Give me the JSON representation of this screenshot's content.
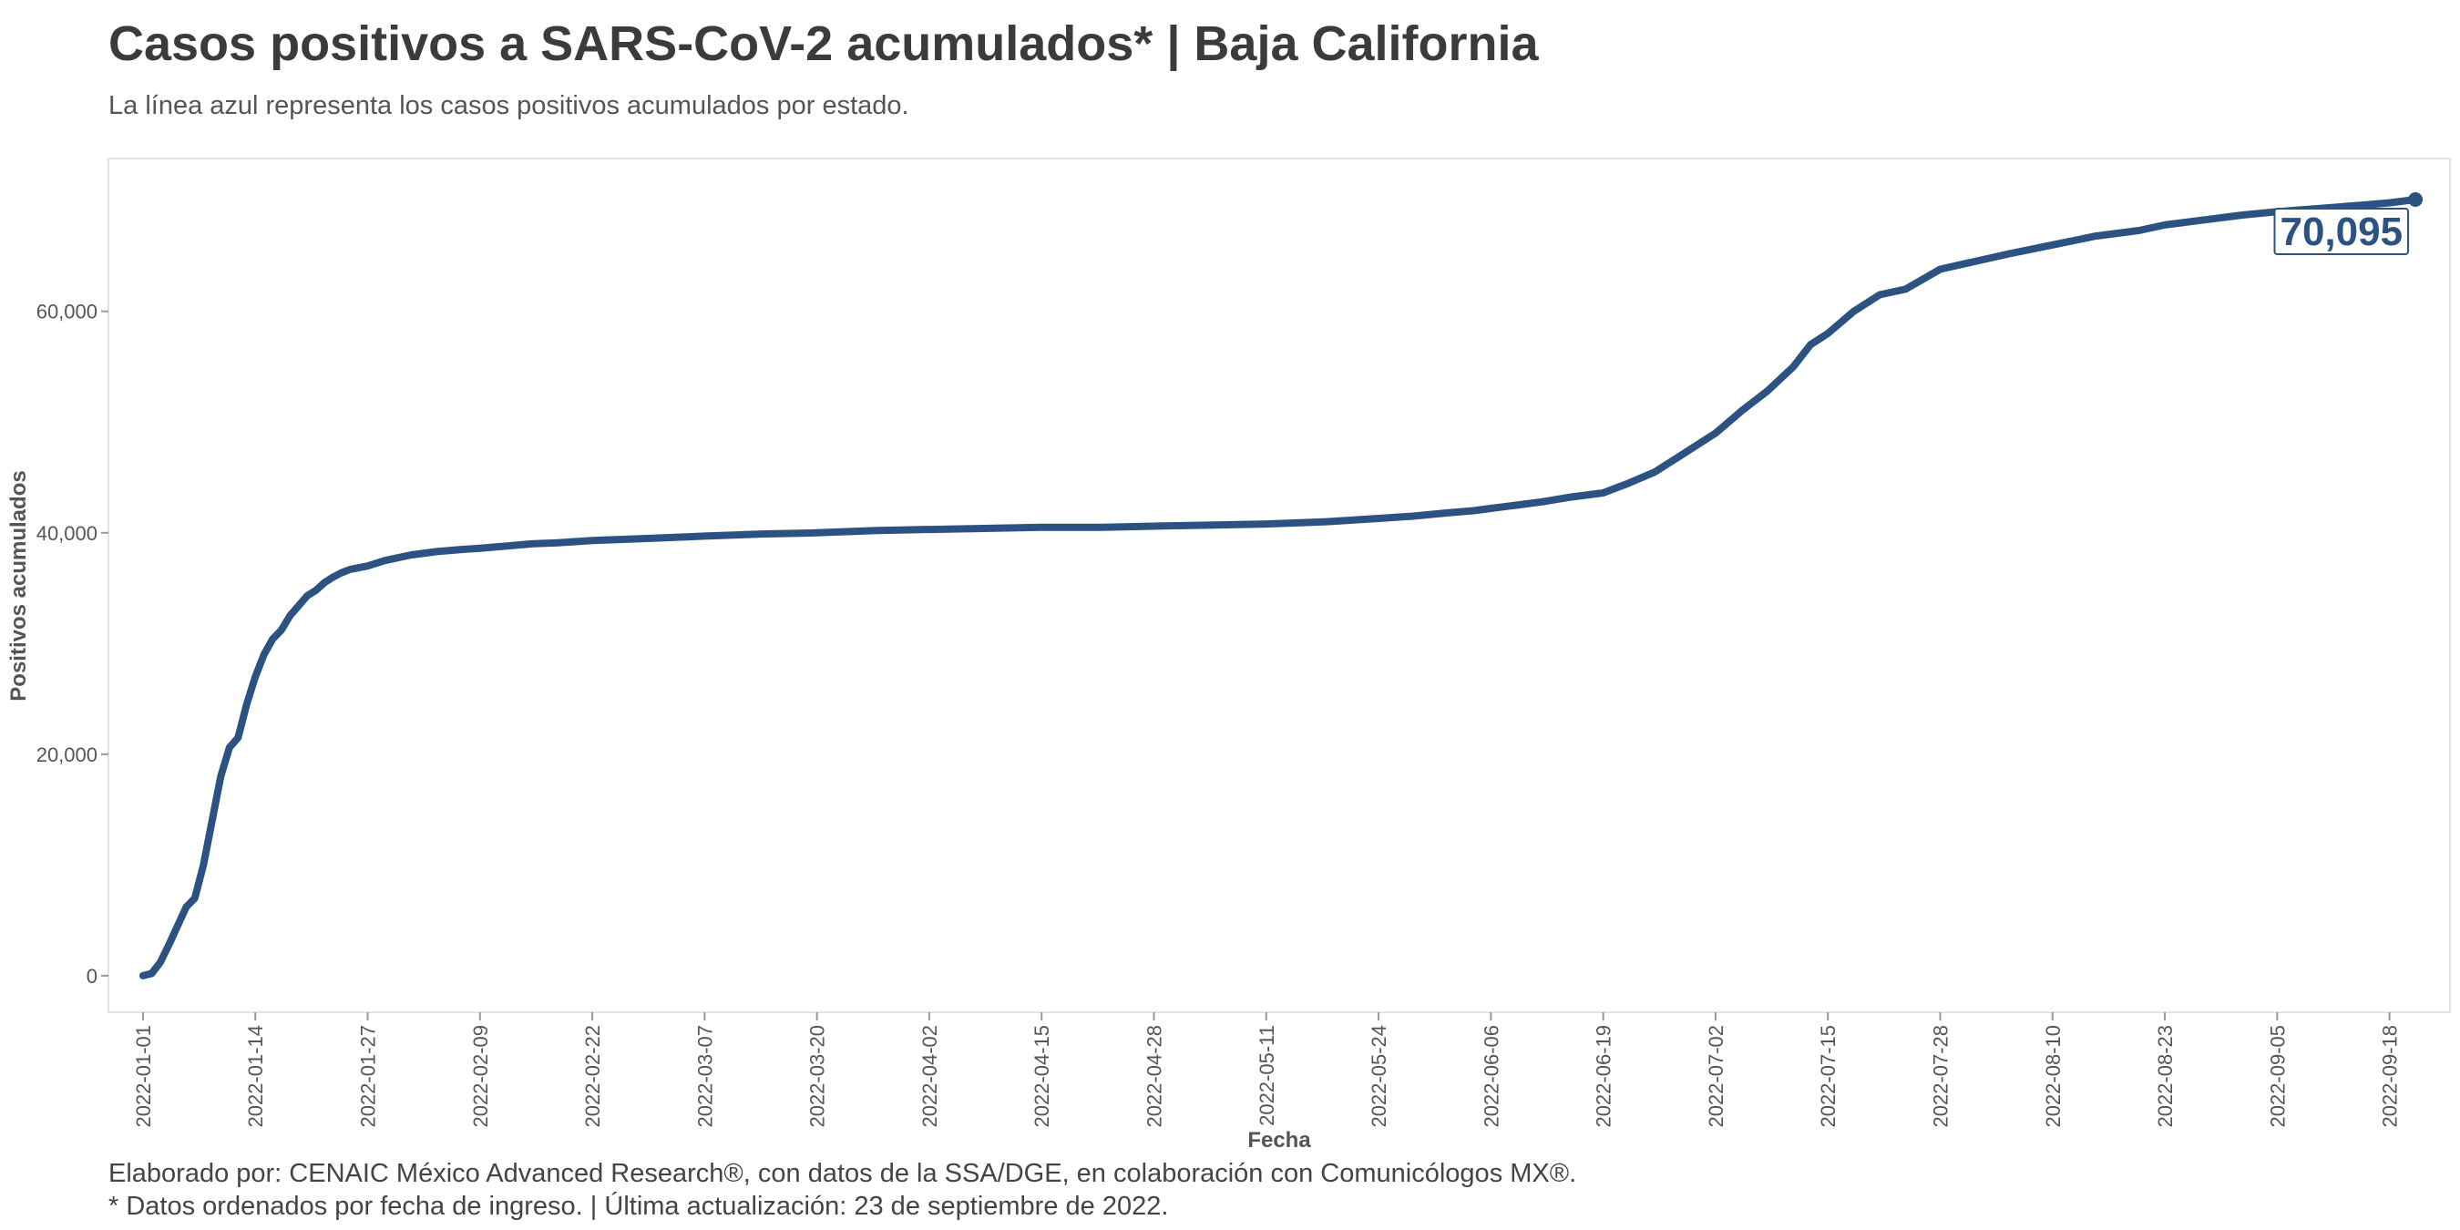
{
  "chart_data": {
    "type": "line",
    "title": "Casos positivos a SARS-CoV-2 acumulados* | Baja California",
    "subtitle": "La línea azul representa los casos positivos acumulados por estado.",
    "xlabel": "Fecha",
    "ylabel": "Positivos acumulados",
    "x_range": [
      "2021-12-28",
      "2022-09-25"
    ],
    "ylim": [
      -3300,
      73800
    ],
    "x_ticks": [
      "2022-01-01",
      "2022-01-14",
      "2022-01-27",
      "2022-02-09",
      "2022-02-22",
      "2022-03-07",
      "2022-03-20",
      "2022-04-02",
      "2022-04-15",
      "2022-04-28",
      "2022-05-11",
      "2022-05-24",
      "2022-06-06",
      "2022-06-19",
      "2022-07-02",
      "2022-07-15",
      "2022-07-28",
      "2022-08-10",
      "2022-08-23",
      "2022-09-05",
      "2022-09-18"
    ],
    "y_ticks": [
      0,
      20000,
      40000,
      60000
    ],
    "y_tick_labels": [
      "0",
      "20,000",
      "40,000",
      "60,000"
    ],
    "grid": false,
    "line_color": "#2c5282",
    "series": [
      {
        "x": [
          "2022-01-01",
          "2022-01-02",
          "2022-01-03",
          "2022-01-04",
          "2022-01-05",
          "2022-01-06",
          "2022-01-07",
          "2022-01-08",
          "2022-01-09",
          "2022-01-10",
          "2022-01-11",
          "2022-01-12",
          "2022-01-13",
          "2022-01-14",
          "2022-01-15",
          "2022-01-16",
          "2022-01-17",
          "2022-01-18",
          "2022-01-19",
          "2022-01-20",
          "2022-01-21",
          "2022-01-22",
          "2022-01-23",
          "2022-01-24",
          "2022-01-25",
          "2022-01-27",
          "2022-01-29",
          "2022-02-01",
          "2022-02-04",
          "2022-02-07",
          "2022-02-09",
          "2022-02-12",
          "2022-02-15",
          "2022-02-18",
          "2022-02-22",
          "2022-03-01",
          "2022-03-07",
          "2022-03-14",
          "2022-03-20",
          "2022-03-27",
          "2022-04-02",
          "2022-04-09",
          "2022-04-15",
          "2022-04-22",
          "2022-04-28",
          "2022-05-05",
          "2022-05-11",
          "2022-05-18",
          "2022-05-24",
          "2022-05-28",
          "2022-06-01",
          "2022-06-04",
          "2022-06-06",
          "2022-06-09",
          "2022-06-12",
          "2022-06-15",
          "2022-06-19",
          "2022-06-22",
          "2022-06-25",
          "2022-06-28",
          "2022-07-01",
          "2022-07-02",
          "2022-07-05",
          "2022-07-08",
          "2022-07-11",
          "2022-07-13",
          "2022-07-15",
          "2022-07-18",
          "2022-07-21",
          "2022-07-24",
          "2022-07-28",
          "2022-08-01",
          "2022-08-05",
          "2022-08-10",
          "2022-08-15",
          "2022-08-20",
          "2022-08-23",
          "2022-08-28",
          "2022-09-01",
          "2022-09-05",
          "2022-09-10",
          "2022-09-15",
          "2022-09-18",
          "2022-09-21"
        ],
        "values": [
          0,
          200,
          1200,
          2800,
          4500,
          6200,
          7000,
          10000,
          14000,
          18000,
          20600,
          21500,
          24500,
          27000,
          29000,
          30400,
          31200,
          32500,
          33400,
          34300,
          34800,
          35500,
          36000,
          36400,
          36700,
          37000,
          37500,
          38000,
          38300,
          38500,
          38600,
          38800,
          39000,
          39100,
          39300,
          39500,
          39700,
          39900,
          40000,
          40200,
          40300,
          40400,
          40500,
          40500,
          40600,
          40700,
          40800,
          41000,
          41300,
          41500,
          41800,
          42000,
          42200,
          42500,
          42800,
          43200,
          43600,
          44500,
          45500,
          47000,
          48500,
          49000,
          51000,
          52800,
          55000,
          57000,
          58000,
          60000,
          61500,
          62000,
          63800,
          64500,
          65200,
          66000,
          66800,
          67300,
          67800,
          68300,
          68700,
          69000,
          69300,
          69600,
          69800,
          70095
        ]
      }
    ],
    "end_label": "70,095",
    "caption_lines": [
      "Elaborado por: CENAIC México Advanced Research®, con datos de la SSA/DGE, en colaboración con Comunicólogos MX®.",
      "* Datos ordenados por fecha de ingreso. | Última actualización: 23 de septiembre de 2022."
    ]
  }
}
